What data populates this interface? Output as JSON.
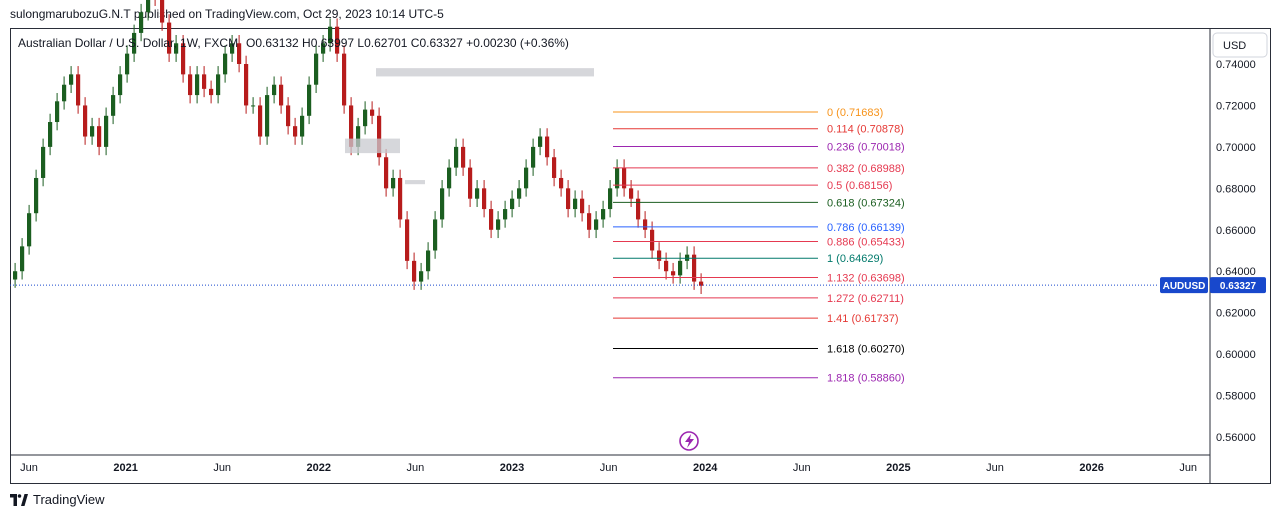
{
  "header": {
    "published_line": "sulongmarubozuG.N.T published on TradingView.com, Oct 29, 2023 10:14 UTC-5"
  },
  "footer": {
    "brand": "TradingView",
    "logo_icon": "tradingview-logo-icon"
  },
  "chart_data": {
    "type": "candlestick",
    "symbol_title": "Australian Dollar / U.S. Dollar, 1W, FXCM",
    "ohlc_line": "O0.63132 H0.63997 L0.62701 C0.63327 +0.00230 (+0.36%)",
    "currency_button": "USD",
    "price_tag": {
      "symbol": "AUDUSD",
      "value": "0.63327",
      "price": 0.63327
    },
    "y_ticks": [
      "0.74000",
      "0.72000",
      "0.70000",
      "0.68000",
      "0.66000",
      "0.64000",
      "0.62000",
      "0.60000",
      "0.58000",
      "0.56000"
    ],
    "x_ticks": [
      "Jun",
      "2021",
      "Jun",
      "2022",
      "Jun",
      "2023",
      "Jun",
      "2024",
      "Jun",
      "2025",
      "Jun",
      "2026",
      "Jun"
    ],
    "x_tick_bold": [
      false,
      true,
      false,
      true,
      false,
      true,
      false,
      true,
      false,
      true,
      false,
      true,
      false
    ],
    "fib_levels": [
      {
        "label": "0 (0.71683)",
        "price": 0.71683,
        "color": "#f7931a"
      },
      {
        "label": "0.114 (0.70878)",
        "price": 0.70878,
        "color": "#e53935"
      },
      {
        "label": "0.236 (0.70018)",
        "price": 0.70018,
        "color": "#9c27b0"
      },
      {
        "label": "0.382 (0.68988)",
        "price": 0.68988,
        "color": "#e53950"
      },
      {
        "label": "0.5 (0.68156)",
        "price": 0.68156,
        "color": "#e53950"
      },
      {
        "label": "0.618 (0.67324)",
        "price": 0.67324,
        "color": "#1b5e20"
      },
      {
        "label": "0.786 (0.66139)",
        "price": 0.66139,
        "color": "#2962ff"
      },
      {
        "label": "0.886 (0.65433)",
        "price": 0.65433,
        "color": "#e53950"
      },
      {
        "label": "1 (0.64629)",
        "price": 0.64629,
        "color": "#00796b"
      },
      {
        "label": "1.132 (0.63698)",
        "price": 0.63698,
        "color": "#e53950"
      },
      {
        "label": "1.272 (0.62711)",
        "price": 0.62711,
        "color": "#e53950"
      },
      {
        "label": "1.41 (0.61737)",
        "price": 0.61737,
        "color": "#e53935"
      },
      {
        "label": "1.618 (0.60270)",
        "price": 0.6027,
        "color": "#000000"
      },
      {
        "label": "1.818 (0.58860)",
        "price": 0.5886,
        "color": "#9c27b0"
      }
    ],
    "up_color": "#1b5e20",
    "down_color": "#b71c1c",
    "closes": [
      0.64,
      0.652,
      0.668,
      0.685,
      0.7,
      0.712,
      0.722,
      0.73,
      0.735,
      0.72,
      0.705,
      0.71,
      0.7,
      0.715,
      0.725,
      0.735,
      0.745,
      0.755,
      0.765,
      0.775,
      0.772,
      0.76,
      0.745,
      0.75,
      0.735,
      0.725,
      0.735,
      0.728,
      0.725,
      0.735,
      0.745,
      0.75,
      0.74,
      0.72,
      0.72,
      0.705,
      0.725,
      0.73,
      0.72,
      0.71,
      0.705,
      0.715,
      0.73,
      0.745,
      0.75,
      0.758,
      0.745,
      0.72,
      0.7,
      0.71,
      0.718,
      0.715,
      0.695,
      0.68,
      0.685,
      0.665,
      0.645,
      0.635,
      0.64,
      0.65,
      0.665,
      0.68,
      0.69,
      0.7,
      0.69,
      0.675,
      0.68,
      0.67,
      0.66,
      0.665,
      0.67,
      0.675,
      0.68,
      0.69,
      0.7,
      0.705,
      0.695,
      0.685,
      0.68,
      0.67,
      0.675,
      0.668,
      0.66,
      0.665,
      0.67,
      0.68,
      0.69,
      0.68,
      0.675,
      0.665,
      0.66,
      0.65,
      0.645,
      0.64,
      0.638,
      0.645,
      0.648,
      0.635,
      0.633
    ],
    "vertical_marker": "lightning-icon"
  }
}
